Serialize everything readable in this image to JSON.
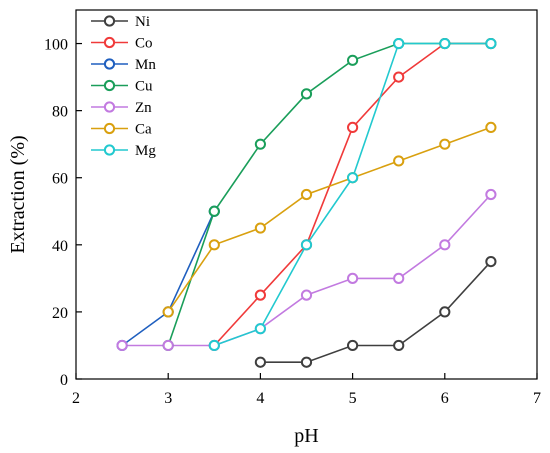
{
  "chart_data": {
    "type": "line",
    "title": "",
    "xlabel": "pH",
    "ylabel": "Extraction (%)",
    "xlim": [
      2,
      7
    ],
    "ylim": [
      0,
      110
    ],
    "xticks": [
      2,
      3,
      4,
      5,
      6,
      7
    ],
    "yticks": [
      0,
      20,
      40,
      60,
      80,
      100
    ],
    "grid": false,
    "legend_position": "top-left",
    "series": [
      {
        "name": "Ni",
        "color": "#3f3f3f",
        "x": [
          4,
          4.5,
          5,
          5.5,
          6,
          6.5
        ],
        "y": [
          5,
          5,
          10,
          10,
          20,
          35
        ]
      },
      {
        "name": "Co",
        "color": "#f03a3a",
        "x": [
          3.5,
          4,
          4.5,
          5,
          5.5,
          6,
          6.5
        ],
        "y": [
          10,
          25,
          40,
          75,
          90,
          100,
          100
        ]
      },
      {
        "name": "Mn",
        "color": "#1f5fbf",
        "x": [
          2.5,
          3,
          3.5
        ],
        "y": [
          10,
          20,
          50
        ]
      },
      {
        "name": "Cu",
        "color": "#1a9e5a",
        "x": [
          3,
          3.5,
          4,
          4.5,
          5,
          5.5,
          6,
          6.5
        ],
        "y": [
          10,
          50,
          70,
          85,
          95,
          100,
          100,
          100
        ]
      },
      {
        "name": "Zn",
        "color": "#c27ae0",
        "x": [
          2.5,
          3,
          3.5,
          4,
          4.5,
          5,
          5.5,
          6,
          6.5
        ],
        "y": [
          10,
          10,
          10,
          15,
          25,
          30,
          30,
          40,
          55
        ]
      },
      {
        "name": "Ca",
        "color": "#d9a00f",
        "x": [
          3,
          3.5,
          4,
          4.5,
          5,
          5.5,
          6,
          6.5
        ],
        "y": [
          20,
          40,
          45,
          55,
          60,
          65,
          70,
          75
        ]
      },
      {
        "name": "Mg",
        "color": "#22c9cf",
        "x": [
          3.5,
          4,
          4.5,
          5,
          5.5,
          6,
          6.5
        ],
        "y": [
          10,
          15,
          40,
          60,
          100,
          100,
          100
        ]
      }
    ]
  }
}
